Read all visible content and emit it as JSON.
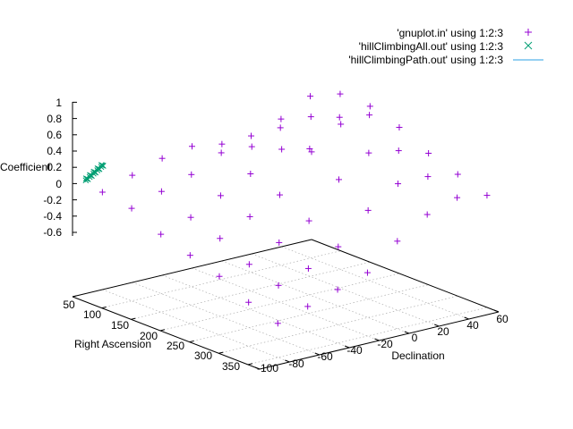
{
  "chart_data": {
    "type": "scatter",
    "title": "",
    "xlabel": "Right Ascension",
    "ylabel": "Declination",
    "zlabel": "Coefficient",
    "xlim": [
      50,
      370
    ],
    "ylim": [
      -100,
      60
    ],
    "zlim": [
      -1,
      1
    ],
    "x_ticks": [
      "50",
      "100",
      "150",
      "200",
      "250",
      "300",
      "350"
    ],
    "y_ticks": [
      "-100",
      "-80",
      "-60",
      "-40",
      "-20",
      "0",
      "20",
      "40",
      "60"
    ],
    "z_ticks": [
      "-0.6",
      "-0.4",
      "-0.2",
      "0",
      "0.2",
      "0.4",
      "0.6",
      "0.8",
      "1"
    ],
    "grid": true,
    "legend_position": "top-right",
    "colors": {
      "gnuplot": "#9400d3",
      "hillAll": "#009e73",
      "hillPath": "#56b4e9"
    },
    "series": [
      {
        "name": "'gnuplot.in' using 1:2:3",
        "marker": "plus",
        "color": "#9400d3",
        "points": [
          [
            50,
            -80,
            0.0
          ],
          [
            100,
            -80,
            -0.05
          ],
          [
            150,
            -80,
            -0.2
          ],
          [
            200,
            -80,
            -0.3
          ],
          [
            250,
            -80,
            -0.4
          ],
          [
            300,
            -80,
            -0.55
          ],
          [
            350,
            -80,
            -0.65
          ],
          [
            50,
            -60,
            0.1
          ],
          [
            100,
            -60,
            0.05
          ],
          [
            150,
            -60,
            -0.1
          ],
          [
            200,
            -60,
            -0.2
          ],
          [
            250,
            -60,
            -0.35
          ],
          [
            300,
            -60,
            -0.45
          ],
          [
            350,
            -60,
            -0.55
          ],
          [
            50,
            -40,
            0.2
          ],
          [
            100,
            -40,
            0.15
          ],
          [
            150,
            -40,
            0.05
          ],
          [
            200,
            -40,
            -0.05
          ],
          [
            250,
            -40,
            -0.2
          ],
          [
            300,
            -40,
            -0.35
          ],
          [
            350,
            -40,
            -0.45
          ],
          [
            50,
            -20,
            0.25
          ],
          [
            100,
            -20,
            0.3
          ],
          [
            150,
            -20,
            0.2
          ],
          [
            200,
            -20,
            0.1
          ],
          [
            250,
            -20,
            -0.05
          ],
          [
            300,
            -20,
            -0.2
          ],
          [
            350,
            -20,
            -0.35
          ],
          [
            50,
            0,
            0.2
          ],
          [
            100,
            0,
            0.4
          ],
          [
            150,
            0,
            0.6
          ],
          [
            200,
            0,
            0.5
          ],
          [
            250,
            0,
            0.3
          ],
          [
            300,
            0,
            0.1
          ],
          [
            350,
            0,
            -0.1
          ],
          [
            50,
            20,
            0.1
          ],
          [
            100,
            20,
            0.5
          ],
          [
            150,
            20,
            0.85
          ],
          [
            200,
            20,
            0.75
          ],
          [
            250,
            20,
            0.5
          ],
          [
            300,
            20,
            0.3
          ],
          [
            350,
            20,
            0.1
          ],
          [
            50,
            40,
            0.0
          ],
          [
            100,
            40,
            0.45
          ],
          [
            150,
            40,
            0.8
          ],
          [
            200,
            40,
            0.7
          ],
          [
            250,
            40,
            0.45
          ],
          [
            300,
            40,
            0.3
          ],
          [
            350,
            40,
            0.2
          ],
          [
            50,
            60,
            -0.1
          ],
          [
            100,
            60,
            0.3
          ],
          [
            150,
            60,
            0.6
          ],
          [
            200,
            60,
            0.5
          ],
          [
            250,
            60,
            0.35
          ],
          [
            300,
            60,
            0.25
          ],
          [
            350,
            60,
            0.15
          ]
        ]
      },
      {
        "name": "'hillClimbingAll.out' using 1:2:3",
        "marker": "cross",
        "color": "#009e73",
        "points": [
          [
            60,
            -95,
            0.2
          ],
          [
            62,
            -95,
            0.22
          ],
          [
            64,
            -94,
            0.24
          ],
          [
            66,
            -94,
            0.26
          ],
          [
            68,
            -93,
            0.28
          ],
          [
            70,
            -93,
            0.3
          ],
          [
            72,
            -92,
            0.32
          ],
          [
            74,
            -92,
            0.34
          ],
          [
            76,
            -91,
            0.36
          ],
          [
            78,
            -91,
            0.38
          ],
          [
            61,
            -94,
            0.21
          ],
          [
            65,
            -93,
            0.25
          ],
          [
            69,
            -92,
            0.29
          ],
          [
            73,
            -91,
            0.33
          ],
          [
            77,
            -90,
            0.37
          ],
          [
            63,
            -96,
            0.23
          ],
          [
            67,
            -95,
            0.27
          ],
          [
            71,
            -94,
            0.31
          ],
          [
            75,
            -93,
            0.35
          ],
          [
            79,
            -92,
            0.39
          ]
        ]
      },
      {
        "name": "'hillClimbingPath.out' using 1:2:3",
        "marker": "line",
        "color": "#56b4e9",
        "points": []
      }
    ]
  }
}
